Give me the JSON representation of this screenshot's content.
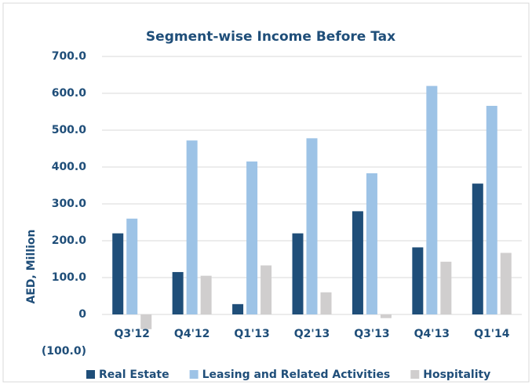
{
  "chart_data": {
    "type": "bar",
    "title": "Segment-wise Income Before Tax",
    "y_label": "AED, Million",
    "categories": [
      "Q3'12",
      "Q4'12",
      "Q1'13",
      "Q2'13",
      "Q3'13",
      "Q4'13",
      "Q1'14"
    ],
    "series": [
      {
        "name": "Real Estate",
        "color": "#1f4e79",
        "values": [
          220,
          115,
          28,
          220,
          280,
          182,
          355
        ]
      },
      {
        "name": "Leasing and Related Activities",
        "color": "#9dc3e6",
        "values": [
          260,
          472,
          415,
          478,
          383,
          620,
          566
        ]
      },
      {
        "name": "Hospitality",
        "color": "#d0cece",
        "values": [
          -40,
          105,
          133,
          60,
          -10,
          143,
          167
        ]
      }
    ],
    "ylim": [
      -100,
      700
    ],
    "yticks": [
      {
        "value": -100,
        "label": "(100.0)"
      },
      0,
      {
        "value": 100,
        "label": "100.0"
      },
      {
        "value": 200,
        "label": "200.0"
      },
      {
        "value": 300,
        "label": "300.0"
      },
      {
        "value": 400,
        "label": "400.0"
      },
      {
        "value": 500,
        "label": "500.0"
      },
      {
        "value": 600,
        "label": "600.0"
      },
      {
        "value": 700,
        "label": "700.0"
      }
    ],
    "grid": true,
    "legend": "bottom"
  }
}
